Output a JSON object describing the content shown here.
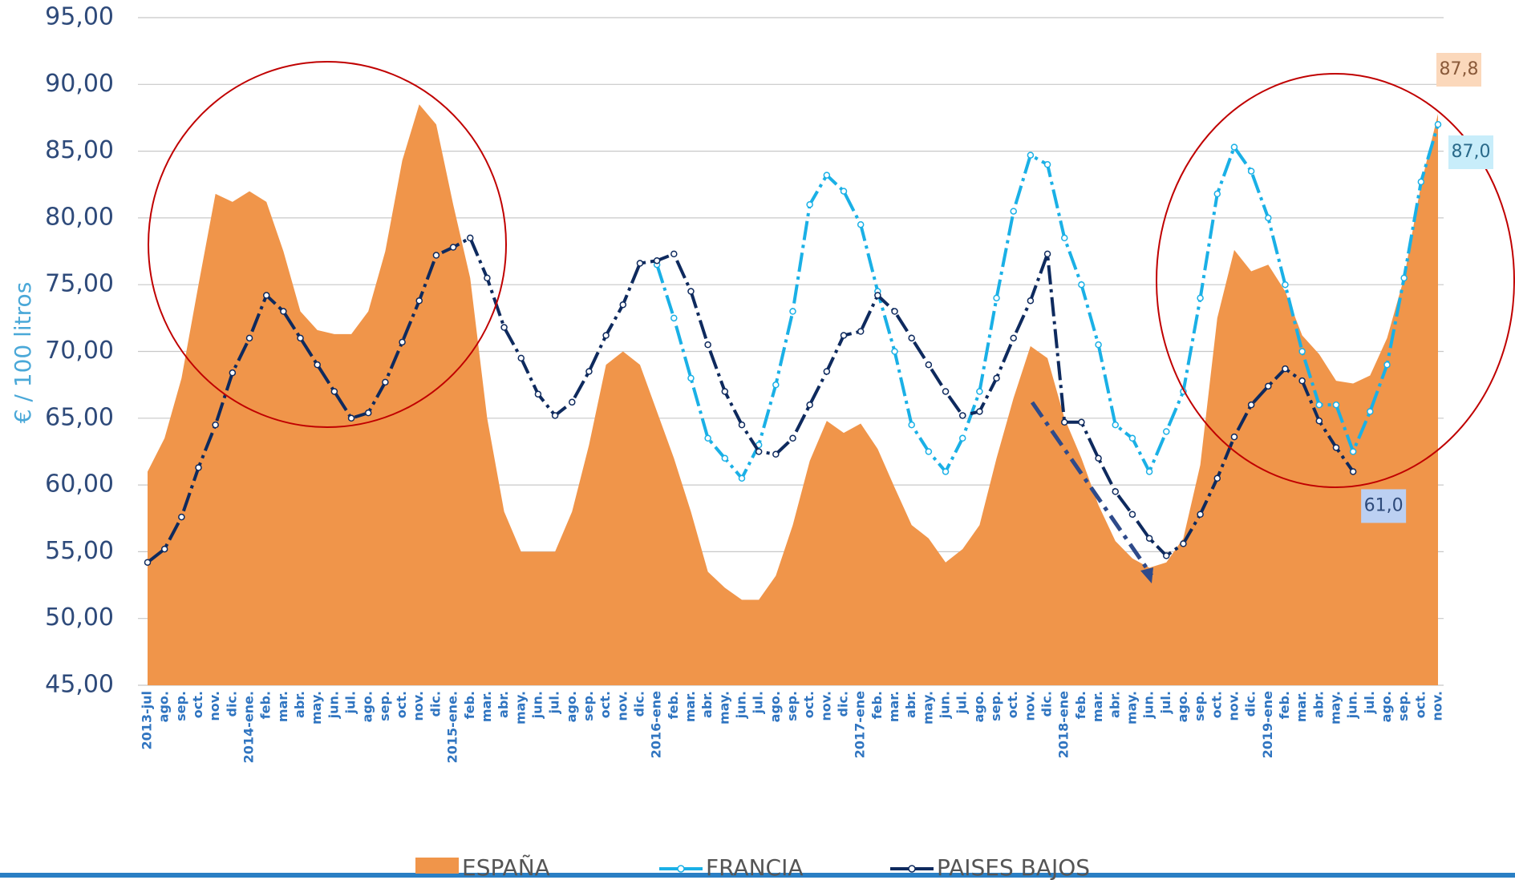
{
  "chart_data": {
    "type": "line",
    "y_axis_label": "€ / 100 litros",
    "categories": [
      "2013-jul",
      "ago.",
      "sep.",
      "oct.",
      "nov.",
      "dic.",
      "2014-ene.",
      "feb.",
      "mar.",
      "abr.",
      "may.",
      "jun.",
      "jul.",
      "ago.",
      "sep.",
      "oct.",
      "nov.",
      "dic.",
      "2015-ene.",
      "feb.",
      "mar.",
      "abr.",
      "may.",
      "jun.",
      "jul.",
      "ago.",
      "sep.",
      "oct.",
      "nov.",
      "dic.",
      "2016-ene",
      "feb.",
      "mar.",
      "abr.",
      "may.",
      "jun.",
      "jul.",
      "ago.",
      "sep.",
      "oct.",
      "nov.",
      "dic.",
      "2017-ene",
      "feb.",
      "mar.",
      "abr.",
      "may.",
      "jun.",
      "jul.",
      "ago.",
      "sep.",
      "oct.",
      "nov.",
      "dic.",
      "2018-ene",
      "feb.",
      "mar.",
      "abr.",
      "may.",
      "jun.",
      "jul.",
      "ago.",
      "sep.",
      "oct.",
      "nov.",
      "dic.",
      "2019-ene",
      "feb.",
      "mar.",
      "abr.",
      "may.",
      "jun.",
      "jul.",
      "ago.",
      "sep.",
      "oct.",
      "nov."
    ],
    "series": [
      {
        "name": "ESPAÑA",
        "style": "area",
        "color": "#f0954a",
        "values": [
          61,
          63.5,
          68,
          75,
          81.8,
          81.2,
          82,
          81.2,
          77.5,
          73,
          71.6,
          71.3,
          71.3,
          73,
          77.5,
          84.3,
          88.5,
          87,
          81,
          75.5,
          65,
          58,
          55,
          55,
          55,
          58,
          63,
          69,
          70,
          69,
          65.5,
          62,
          58,
          53.5,
          52.3,
          51.4,
          51.4,
          53.2,
          57,
          61.8,
          64.8,
          63.9,
          64.6,
          62.7,
          59.8,
          57,
          56,
          54.2,
          55.2,
          57,
          62,
          66.5,
          70.4,
          69.5,
          65,
          62,
          58.5,
          55.8,
          54.5,
          53.8,
          54.2,
          56,
          61.5,
          72.5,
          77.6,
          76,
          76.5,
          74.5,
          71.2,
          69.8,
          67.8,
          67.6,
          68.2,
          71,
          75.5,
          82.5,
          87.8
        ],
        "value_labels": [
          null,
          null,
          null,
          null,
          null,
          null,
          null,
          null,
          null,
          null,
          null,
          null,
          null,
          null,
          null,
          null,
          null,
          null,
          null,
          null,
          null,
          null,
          null,
          null,
          null,
          null,
          null,
          null,
          null,
          null,
          null,
          null,
          null,
          null,
          null,
          null,
          null,
          null,
          null,
          null,
          null,
          null,
          null,
          null,
          null,
          null,
          null,
          null,
          null,
          null,
          null,
          null,
          null,
          null,
          null,
          null,
          null,
          null,
          null,
          null,
          null,
          null,
          null,
          null,
          null,
          null,
          null,
          null,
          null,
          null,
          null,
          null,
          null,
          null,
          null,
          null,
          "87,8"
        ]
      },
      {
        "name": "FRANCIA",
        "style": "line",
        "color": "#1ab0e6",
        "values": [
          null,
          null,
          null,
          null,
          null,
          null,
          null,
          null,
          null,
          null,
          null,
          null,
          null,
          null,
          null,
          null,
          null,
          null,
          null,
          null,
          null,
          null,
          null,
          null,
          null,
          null,
          null,
          null,
          null,
          null,
          76.5,
          72.5,
          68,
          63.5,
          62,
          60.5,
          63,
          67.5,
          73,
          81,
          83.2,
          82,
          79.5,
          74.5,
          70,
          64.5,
          62.5,
          61,
          63.5,
          67,
          74,
          80.5,
          84.7,
          84,
          78.5,
          75,
          70.5,
          64.5,
          63.5,
          61,
          64,
          67,
          74,
          81.8,
          85.3,
          83.5,
          80,
          75,
          70,
          66,
          66,
          62.5,
          65.5,
          69,
          75.5,
          82.7,
          87.0
        ],
        "value_labels": [
          null,
          null,
          null,
          null,
          null,
          null,
          null,
          null,
          null,
          null,
          null,
          null,
          null,
          null,
          null,
          null,
          null,
          null,
          null,
          null,
          null,
          null,
          null,
          null,
          null,
          null,
          null,
          null,
          null,
          null,
          null,
          null,
          null,
          null,
          null,
          null,
          null,
          null,
          null,
          null,
          null,
          null,
          null,
          null,
          null,
          null,
          null,
          null,
          null,
          null,
          null,
          null,
          null,
          null,
          null,
          null,
          null,
          null,
          null,
          null,
          null,
          null,
          null,
          null,
          null,
          null,
          null,
          null,
          null,
          null,
          null,
          null,
          null,
          null,
          null,
          null,
          "87,0"
        ]
      },
      {
        "name": "PAISES BAJOS",
        "style": "line",
        "color": "#0e2a5e",
        "values": [
          54.2,
          55.2,
          57.6,
          61.3,
          64.5,
          68.4,
          71,
          74.2,
          73,
          71,
          69,
          67,
          65,
          65.4,
          67.7,
          70.7,
          73.8,
          77.2,
          77.8,
          78.5,
          75.5,
          71.8,
          69.5,
          66.8,
          65.2,
          66.2,
          68.5,
          71.2,
          73.5,
          76.6,
          76.8,
          77.3,
          74.5,
          70.5,
          67,
          64.5,
          62.5,
          62.3,
          63.5,
          66,
          68.5,
          71.2,
          71.5,
          74.2,
          73,
          71,
          69,
          67,
          65.2,
          65.5,
          68,
          71,
          73.8,
          77.3,
          64.7,
          64.7,
          62,
          59.5,
          57.8,
          56,
          54.7,
          55.6,
          57.8,
          60.5,
          63.6,
          66,
          67.4,
          68.7,
          67.8,
          64.8,
          62.8,
          61.0,
          null,
          null,
          null,
          null,
          null
        ],
        "value_labels": [
          null,
          null,
          null,
          null,
          null,
          null,
          null,
          null,
          null,
          null,
          null,
          null,
          null,
          null,
          null,
          null,
          null,
          null,
          null,
          null,
          null,
          null,
          null,
          null,
          null,
          null,
          null,
          null,
          null,
          null,
          null,
          null,
          null,
          null,
          null,
          null,
          null,
          null,
          null,
          null,
          null,
          null,
          null,
          null,
          null,
          null,
          null,
          null,
          null,
          null,
          null,
          null,
          null,
          null,
          null,
          null,
          null,
          null,
          null,
          null,
          null,
          null,
          null,
          null,
          null,
          null,
          null,
          null,
          null,
          null,
          null,
          "61,0",
          null,
          null,
          null,
          null,
          null
        ]
      }
    ],
    "ylim": [
      45,
      95
    ],
    "yticks": [
      {
        "value": 45,
        "label": "45,00"
      },
      {
        "value": 50,
        "label": "50,00"
      },
      {
        "value": 55,
        "label": "55,00"
      },
      {
        "value": 60,
        "label": "60,00"
      },
      {
        "value": 65,
        "label": "65,00"
      },
      {
        "value": 70,
        "label": "70,00"
      },
      {
        "value": 75,
        "label": "75,00"
      },
      {
        "value": 80,
        "label": "80,00"
      },
      {
        "value": 85,
        "label": "85,00"
      },
      {
        "value": 90,
        "label": "90,00"
      },
      {
        "value": 95,
        "label": "95,00"
      }
    ],
    "grid": true,
    "legend": "bottom"
  }
}
